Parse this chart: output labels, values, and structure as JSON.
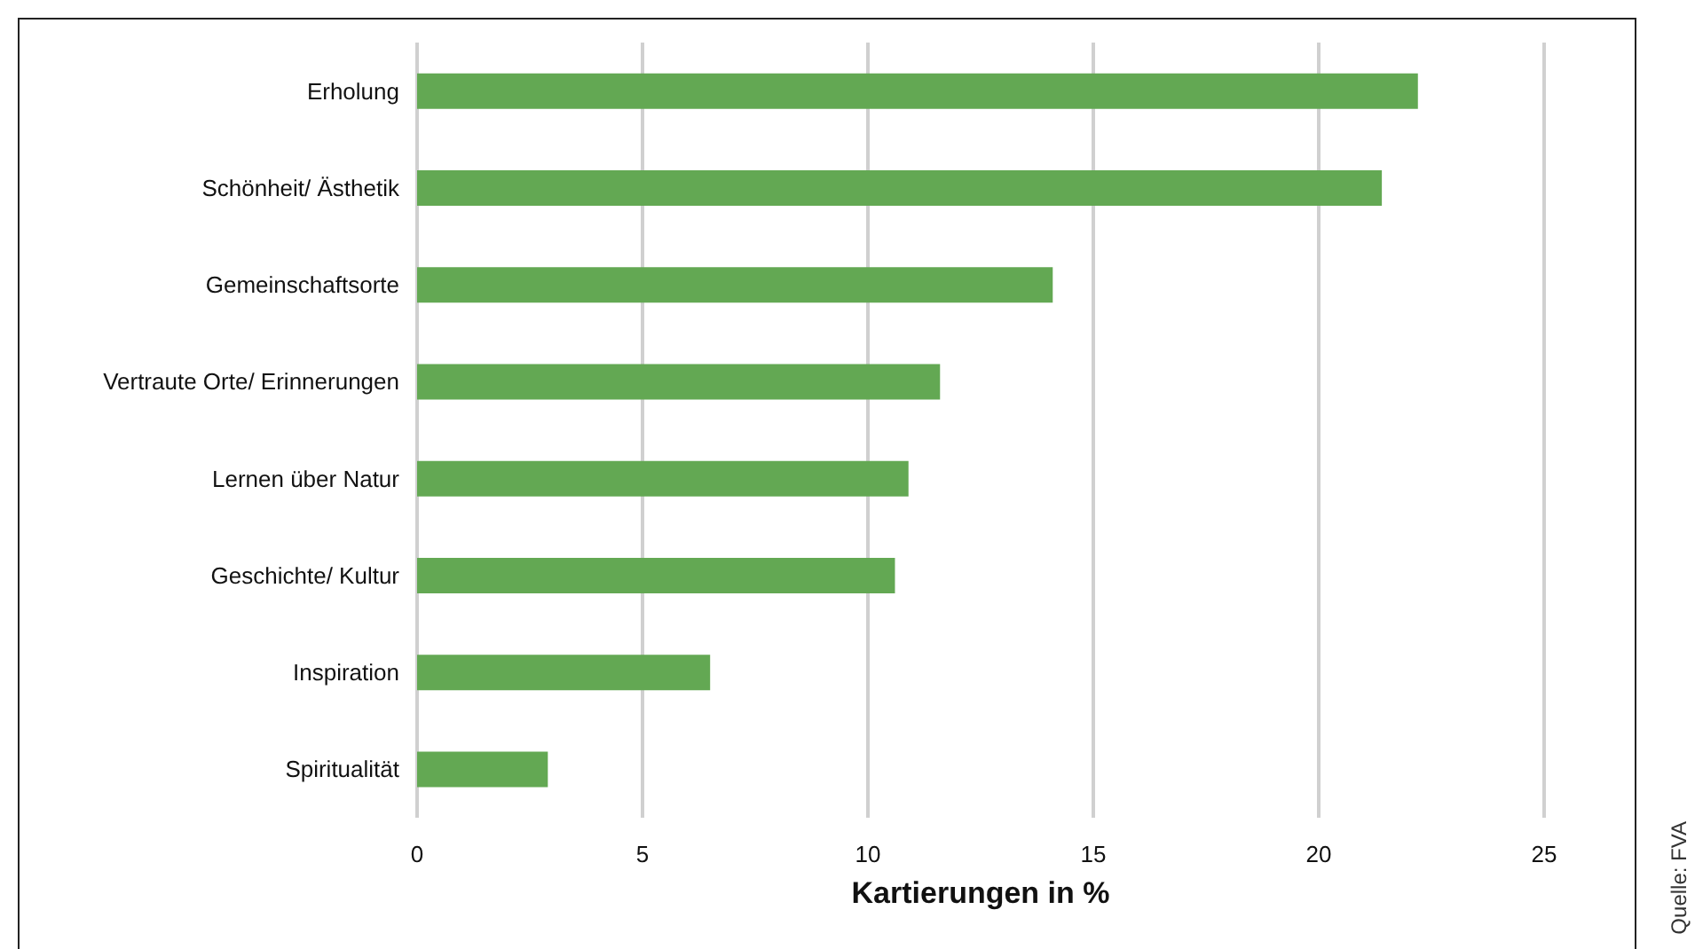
{
  "chart_data": {
    "type": "bar",
    "orientation": "horizontal",
    "categories": [
      "Erholung",
      "Schönheit/ Ästhetik",
      "Gemeinschaftsorte",
      "Vertraute Orte/ Erinnerungen",
      "Lernen über Natur",
      "Geschichte/ Kultur",
      "Inspiration",
      "Spiritualität"
    ],
    "values": [
      22.2,
      21.4,
      14.1,
      11.6,
      10.9,
      10.6,
      6.5,
      2.9
    ],
    "color": "#63a853",
    "xlabel": "Kartierungen in %",
    "xlim": [
      0,
      25
    ],
    "xticks": [
      0,
      5,
      10,
      15,
      20,
      25
    ],
    "grid": "x",
    "annotations": [
      "Quelle: FVA"
    ]
  }
}
